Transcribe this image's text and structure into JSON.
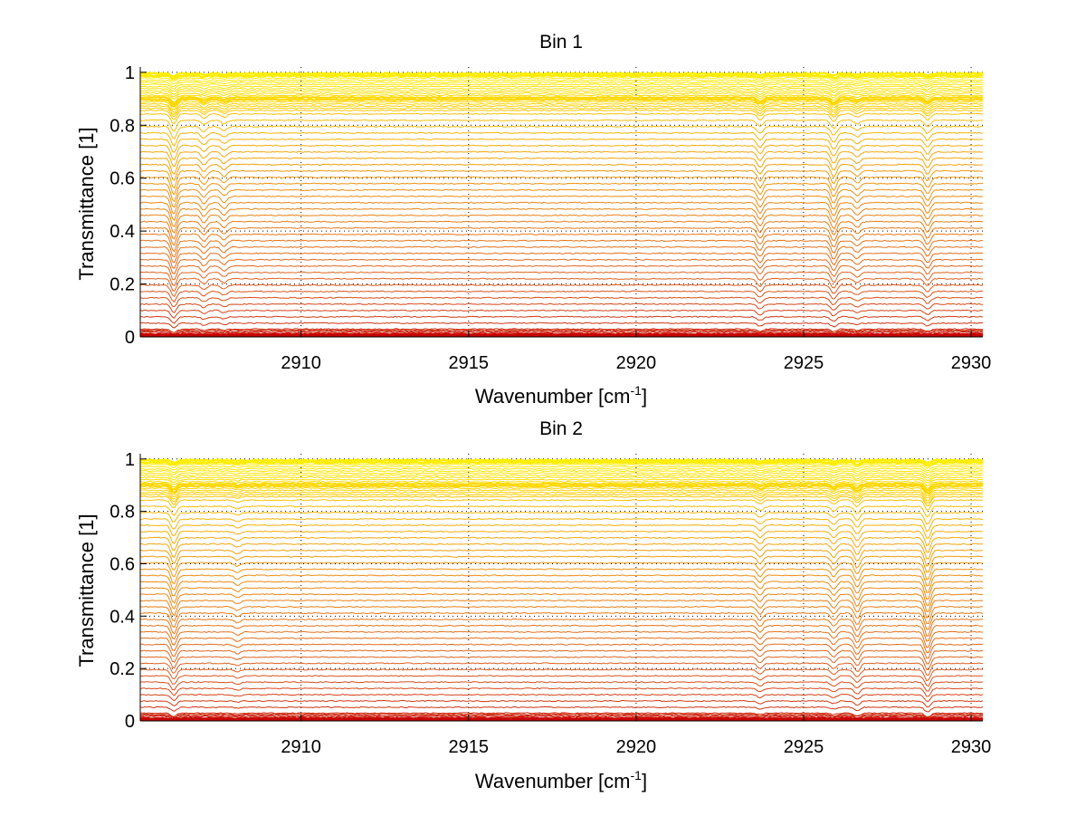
{
  "chart_data": [
    {
      "type": "line",
      "title": "Bin 1",
      "xlabel": "Wavenumber [cm",
      "xlabel_sup": "-1",
      "xlabel_end": "]",
      "ylabel": "Transmittance [1]",
      "xlim": [
        2905.2,
        2930.35
      ],
      "ylim": [
        0,
        1.02
      ],
      "xticks": [
        2910,
        2915,
        2920,
        2925,
        2930
      ],
      "xtick_labels": [
        "2910",
        "2915",
        "2920",
        "2925",
        "2930"
      ],
      "yticks": [
        0,
        0.2,
        0.4,
        0.6,
        0.8,
        1
      ],
      "ytick_labels": [
        "0",
        "0.2",
        "0.4",
        "0.6",
        "0.8",
        "1"
      ],
      "grid": "dotted",
      "colormap": [
        "#c00000",
        "#e06020",
        "#f09010",
        "#ffd000",
        "#ffee00"
      ],
      "n_traces": 60,
      "dips": [
        {
          "x": 2906.2,
          "depth": 0.06
        },
        {
          "x": 2907.1,
          "depth": 0.025
        },
        {
          "x": 2907.7,
          "depth": 0.02
        },
        {
          "x": 2923.7,
          "depth": 0.035
        },
        {
          "x": 2925.9,
          "depth": 0.045
        },
        {
          "x": 2926.6,
          "depth": 0.02
        },
        {
          "x": 2928.7,
          "depth": 0.035
        }
      ]
    },
    {
      "type": "line",
      "title": "Bin 2",
      "xlabel": "Wavenumber [cm",
      "xlabel_sup": "-1",
      "xlabel_end": "]",
      "ylabel": "Transmittance [1]",
      "xlim": [
        2905.2,
        2930.35
      ],
      "ylim": [
        0,
        1.02
      ],
      "xticks": [
        2910,
        2915,
        2920,
        2925,
        2930
      ],
      "xtick_labels": [
        "2910",
        "2915",
        "2920",
        "2925",
        "2930"
      ],
      "yticks": [
        0,
        0.2,
        0.4,
        0.6,
        0.8,
        1
      ],
      "ytick_labels": [
        "0",
        "0.2",
        "0.4",
        "0.6",
        "0.8",
        "1"
      ],
      "grid": "dotted",
      "colormap": [
        "#c00000",
        "#e06020",
        "#f09010",
        "#ffd000",
        "#ffee00"
      ],
      "n_traces": 60,
      "dips": [
        {
          "x": 2906.2,
          "depth": 0.05
        },
        {
          "x": 2908.1,
          "depth": 0.012
        },
        {
          "x": 2923.7,
          "depth": 0.025
        },
        {
          "x": 2925.9,
          "depth": 0.025
        },
        {
          "x": 2926.6,
          "depth": 0.04
        },
        {
          "x": 2928.7,
          "depth": 0.06
        }
      ]
    }
  ]
}
